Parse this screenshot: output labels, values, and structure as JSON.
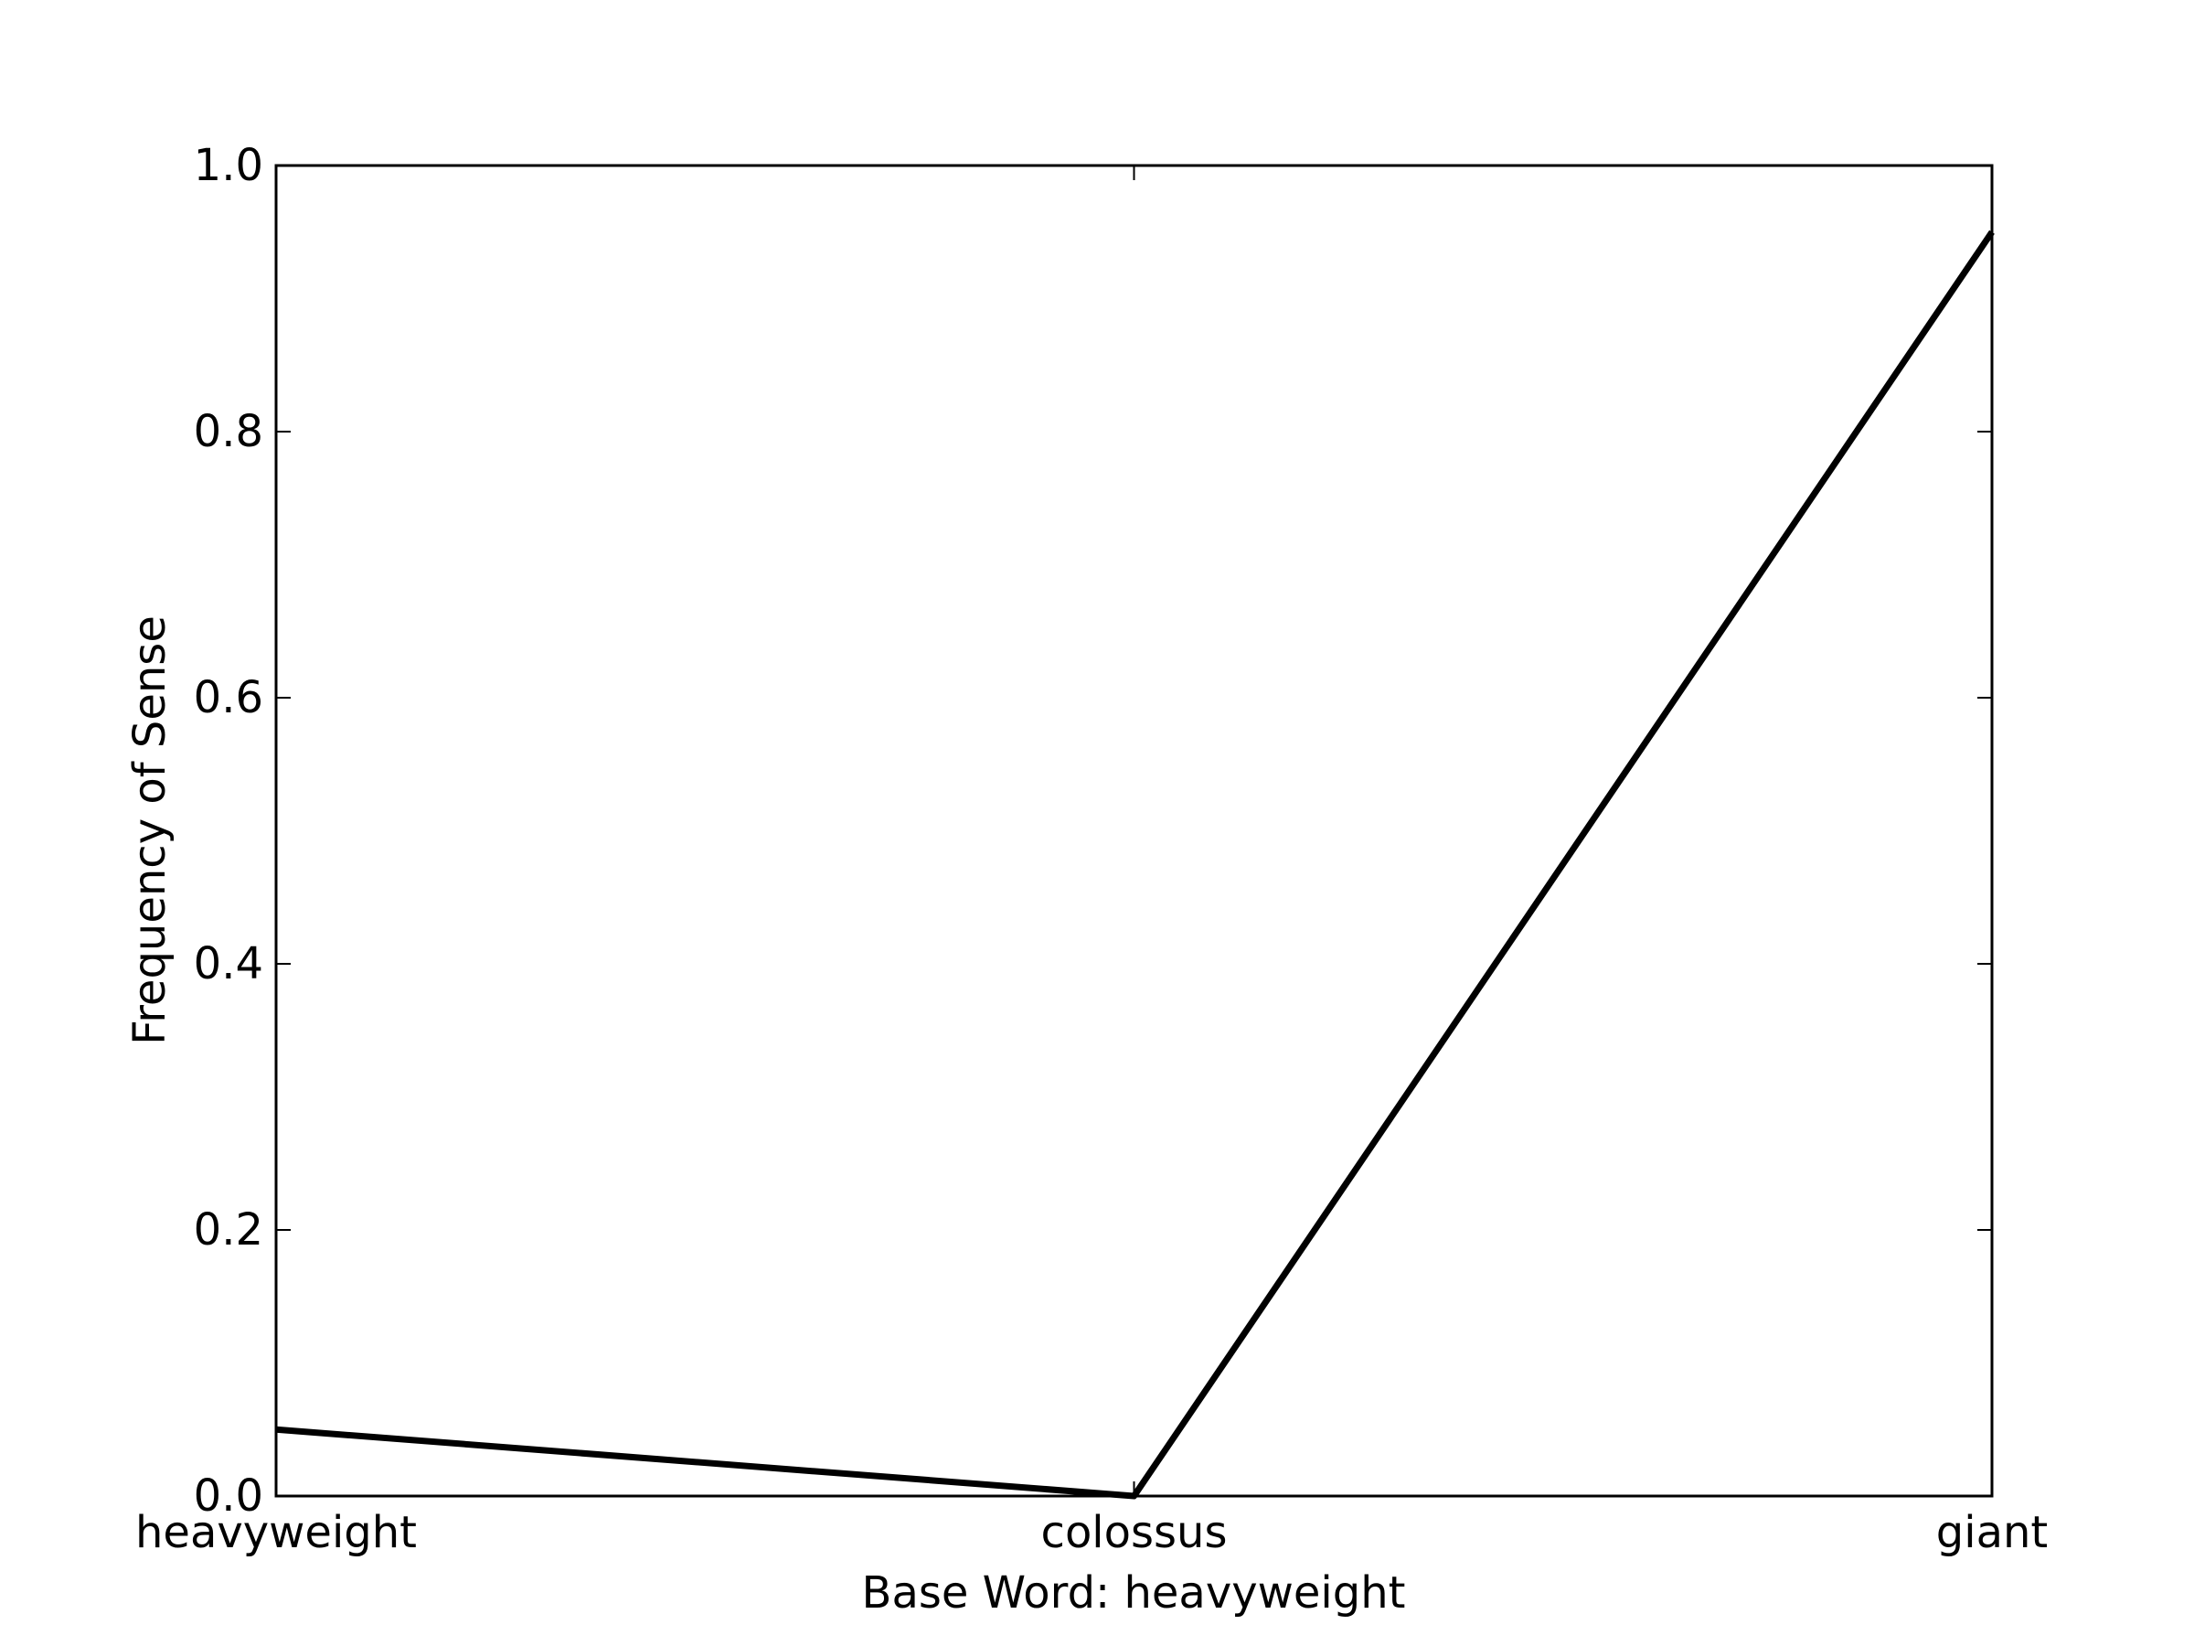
{
  "chart_data": {
    "type": "line",
    "title": "",
    "xlabel": "Base Word: heavyweight",
    "ylabel": "Frequency of Sense",
    "categories": [
      "heavyweight",
      "colossus",
      "giant"
    ],
    "series": [
      {
        "values": [
          0.05,
          0.0,
          0.95
        ],
        "color": "#000000"
      }
    ],
    "ylim": [
      0,
      1
    ],
    "yticks": [
      "0.0",
      "0.2",
      "0.4",
      "0.6",
      "0.8",
      "1.0"
    ],
    "grid": false,
    "legend": "none"
  }
}
